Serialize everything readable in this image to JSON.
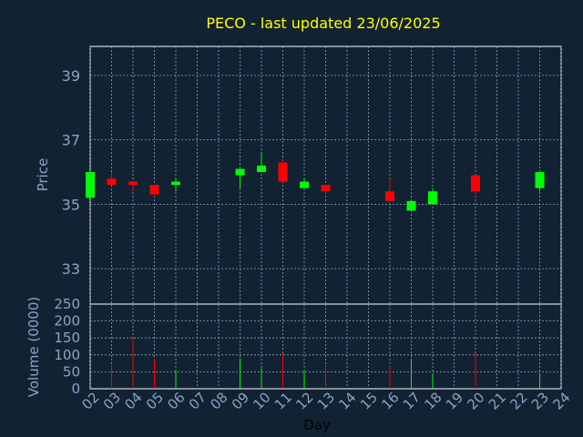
{
  "title": "PECO - last updated 23/06/2025",
  "colors": {
    "background": "#112233",
    "plot_frame": "#ffffff",
    "title": "#ffff00",
    "axis_text": "#8aa4c4",
    "gridline": "#8aa4c4",
    "up": "#00ff00",
    "down": "#ff0000"
  },
  "chart_data": [
    {
      "type": "candlestick",
      "ylabel": "Price",
      "ylim": [
        31.9,
        39.9
      ],
      "yticks": [
        33,
        35,
        37,
        39
      ],
      "grid": true,
      "xticks": [
        "02",
        "03",
        "04",
        "05",
        "06",
        "07",
        "08",
        "09",
        "10",
        "11",
        "12",
        "13",
        "14",
        "15",
        "16",
        "17",
        "18",
        "19",
        "20",
        "21",
        "22",
        "23",
        "24"
      ],
      "candles": [
        {
          "day": "02",
          "open": 35.2,
          "high": 36.0,
          "low": 35.2,
          "close": 36.0
        },
        {
          "day": "03",
          "open": 35.8,
          "high": 36.0,
          "low": 35.6,
          "close": 35.6
        },
        {
          "day": "04",
          "open": 35.7,
          "high": 35.7,
          "low": 35.4,
          "close": 35.6
        },
        {
          "day": "05",
          "open": 35.6,
          "high": 35.6,
          "low": 35.3,
          "close": 35.3
        },
        {
          "day": "06",
          "open": 35.6,
          "high": 35.8,
          "low": 35.4,
          "close": 35.7
        },
        {
          "day": "09",
          "open": 35.9,
          "high": 36.1,
          "low": 35.5,
          "close": 36.1
        },
        {
          "day": "10",
          "open": 36.0,
          "high": 36.6,
          "low": 36.0,
          "close": 36.2
        },
        {
          "day": "11",
          "open": 36.3,
          "high": 36.3,
          "low": 35.7,
          "close": 35.7
        },
        {
          "day": "12",
          "open": 35.5,
          "high": 35.8,
          "low": 35.5,
          "close": 35.7
        },
        {
          "day": "13",
          "open": 35.6,
          "high": 35.6,
          "low": 35.3,
          "close": 35.4
        },
        {
          "day": "16",
          "open": 35.4,
          "high": 35.8,
          "low": 35.1,
          "close": 35.1
        },
        {
          "day": "17",
          "open": 34.8,
          "high": 35.1,
          "low": 34.8,
          "close": 35.1
        },
        {
          "day": "18",
          "open": 35.0,
          "high": 35.5,
          "low": 35.0,
          "close": 35.4
        },
        {
          "day": "20",
          "open": 35.9,
          "high": 35.9,
          "low": 35.3,
          "close": 35.4
        },
        {
          "day": "23",
          "open": 35.5,
          "high": 36.0,
          "low": 35.4,
          "close": 36.0
        }
      ]
    },
    {
      "type": "bar",
      "ylabel": "Volume (0000)",
      "xlabel": "Day",
      "ylim": [
        0,
        250
      ],
      "yticks": [
        0,
        50,
        100,
        150,
        200,
        250
      ],
      "grid": true,
      "xticks": [
        "02",
        "03",
        "04",
        "05",
        "06",
        "07",
        "08",
        "09",
        "10",
        "11",
        "12",
        "13",
        "14",
        "15",
        "16",
        "17",
        "18",
        "19",
        "20",
        "21",
        "22",
        "23",
        "24"
      ],
      "bars": [
        {
          "day": "02",
          "value": 0,
          "direction": "up"
        },
        {
          "day": "03",
          "value": 70,
          "direction": "down"
        },
        {
          "day": "04",
          "value": 150,
          "direction": "down"
        },
        {
          "day": "05",
          "value": 90,
          "direction": "down"
        },
        {
          "day": "06",
          "value": 55,
          "direction": "up"
        },
        {
          "day": "09",
          "value": 90,
          "direction": "up"
        },
        {
          "day": "10",
          "value": 60,
          "direction": "up"
        },
        {
          "day": "11",
          "value": 105,
          "direction": "down"
        },
        {
          "day": "12",
          "value": 55,
          "direction": "up"
        },
        {
          "day": "13",
          "value": 70,
          "direction": "down"
        },
        {
          "day": "16",
          "value": 65,
          "direction": "down"
        },
        {
          "day": "17",
          "value": 90,
          "direction": "up"
        },
        {
          "day": "18",
          "value": 45,
          "direction": "up"
        },
        {
          "day": "20",
          "value": 105,
          "direction": "down"
        },
        {
          "day": "23",
          "value": 45,
          "direction": "up"
        }
      ]
    }
  ]
}
